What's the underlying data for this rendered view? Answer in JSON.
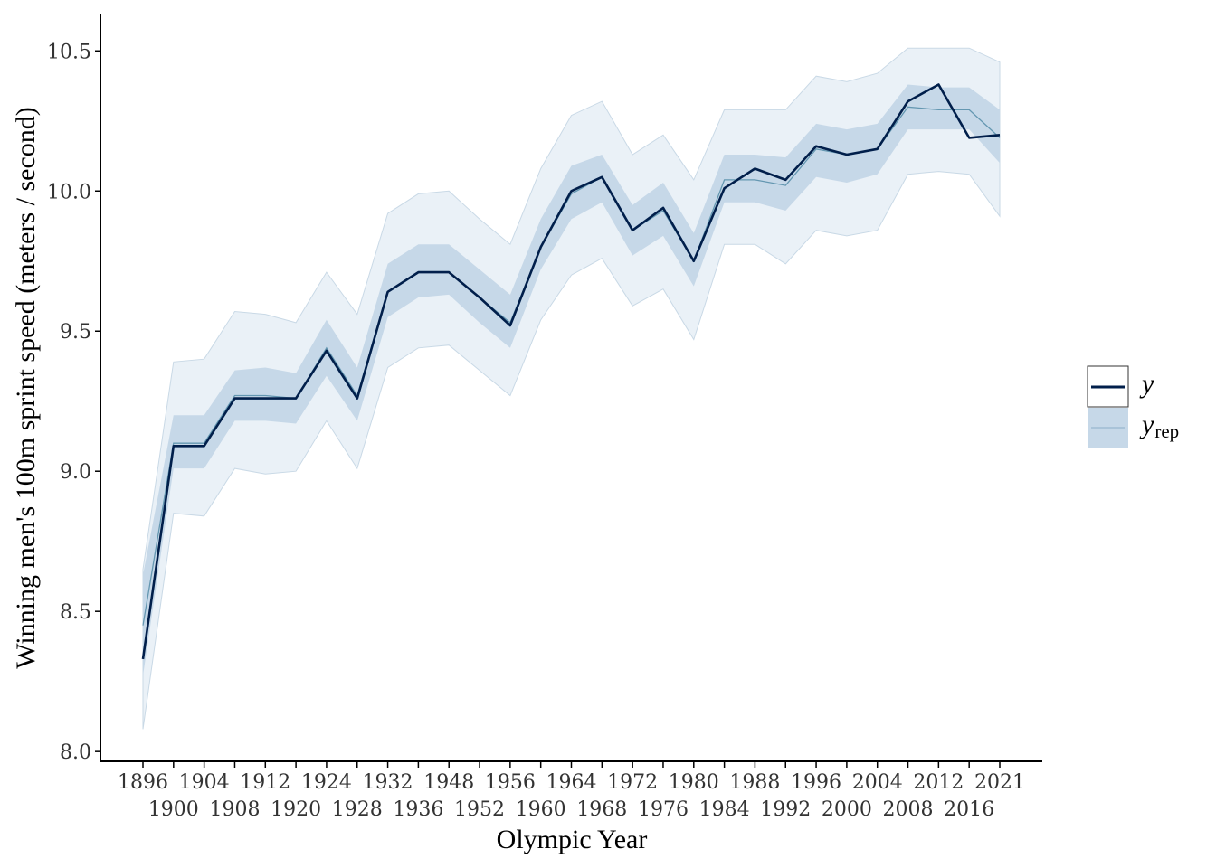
{
  "chart_data": {
    "type": "line",
    "xlabel": "Olympic Year",
    "ylabel": "Winning men's 100m sprint speed (meters / second)",
    "ylim": [
      7.965,
      10.63
    ],
    "y_ticks": [
      "8.0",
      "8.5",
      "9.0",
      "9.5",
      "10.0",
      "10.5"
    ],
    "x": [
      "1896",
      "1900",
      "1904",
      "1908",
      "1912",
      "1920",
      "1924",
      "1928",
      "1932",
      "1936",
      "1948",
      "1952",
      "1956",
      "1960",
      "1964",
      "1968",
      "1972",
      "1976",
      "1980",
      "1984",
      "1988",
      "1992",
      "1996",
      "2000",
      "2004",
      "2008",
      "2012",
      "2016",
      "2021"
    ],
    "legend": {
      "position": "right",
      "y_label": "y",
      "yrep_label": "y",
      "yrep_sub": "rep"
    },
    "colors": {
      "y_line": "#011f4b",
      "yrep_line": "#6497b1",
      "inner_band": "#c6d8e8",
      "outer_band": "#eaf1f7",
      "outer_band_edge": "#c9d9e6",
      "axis": "#000000"
    },
    "series": [
      {
        "name": "y",
        "values": [
          8.33,
          9.09,
          9.09,
          9.26,
          9.26,
          9.26,
          9.43,
          9.26,
          9.64,
          9.71,
          9.71,
          9.62,
          9.52,
          9.8,
          10.0,
          10.05,
          9.86,
          9.94,
          9.75,
          10.01,
          10.08,
          10.04,
          10.16,
          10.13,
          10.15,
          10.32,
          10.38,
          10.19,
          10.2
        ]
      },
      {
        "name": "yrep",
        "values": [
          8.45,
          9.1,
          9.1,
          9.27,
          9.27,
          9.26,
          9.44,
          9.27,
          9.64,
          9.71,
          9.71,
          9.62,
          9.53,
          9.8,
          9.99,
          10.05,
          9.86,
          9.93,
          9.75,
          10.04,
          10.04,
          10.02,
          10.15,
          10.13,
          10.15,
          10.3,
          10.29,
          10.29,
          10.19
        ],
        "inner_lower": [
          8.27,
          9.01,
          9.01,
          9.18,
          9.18,
          9.17,
          9.34,
          9.18,
          9.55,
          9.62,
          9.63,
          9.53,
          9.44,
          9.72,
          9.9,
          9.96,
          9.77,
          9.84,
          9.66,
          9.96,
          9.96,
          9.93,
          10.05,
          10.03,
          10.06,
          10.22,
          10.22,
          10.22,
          10.1
        ],
        "inner_upper": [
          8.63,
          9.2,
          9.2,
          9.36,
          9.37,
          9.35,
          9.54,
          9.37,
          9.74,
          9.81,
          9.81,
          9.72,
          9.63,
          9.9,
          10.09,
          10.13,
          9.95,
          10.03,
          9.85,
          10.13,
          10.13,
          10.12,
          10.24,
          10.22,
          10.24,
          10.38,
          10.37,
          10.37,
          10.29
        ],
        "outer_lower": [
          8.08,
          8.85,
          8.84,
          9.01,
          8.99,
          9.0,
          9.18,
          9.01,
          9.37,
          9.44,
          9.45,
          9.36,
          9.27,
          9.54,
          9.7,
          9.76,
          9.59,
          9.65,
          9.47,
          9.81,
          9.81,
          9.74,
          9.86,
          9.84,
          9.86,
          10.06,
          10.07,
          10.06,
          9.91
        ],
        "outer_upper": [
          8.65,
          9.39,
          9.4,
          9.57,
          9.56,
          9.53,
          9.71,
          9.56,
          9.92,
          9.99,
          10.0,
          9.9,
          9.81,
          10.08,
          10.27,
          10.32,
          10.13,
          10.2,
          10.04,
          10.29,
          10.29,
          10.29,
          10.41,
          10.39,
          10.42,
          10.51,
          10.51,
          10.51,
          10.46
        ]
      }
    ]
  }
}
